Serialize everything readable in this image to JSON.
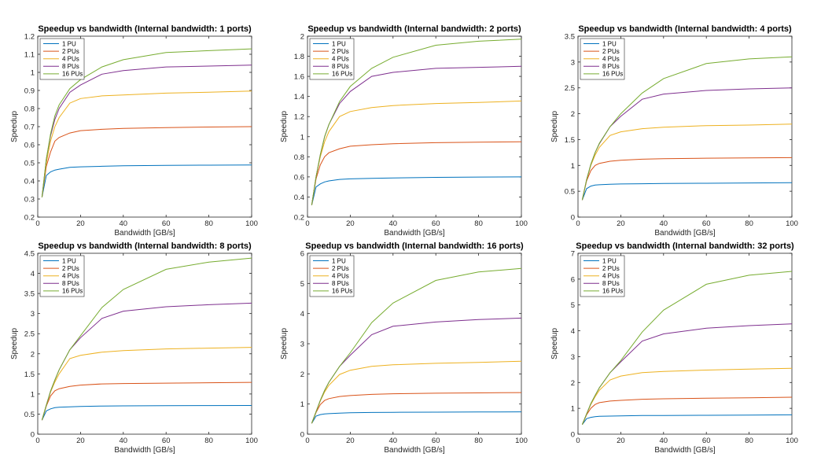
{
  "chart_data": [
    {
      "type": "line",
      "title": "Speedup vs bandwidth (Internal bandwidth: 1 ports)",
      "xlabel": "Bandwidth [GB/s]",
      "ylabel": "Speedup",
      "xlim": [
        0,
        100
      ],
      "ylim": [
        0.2,
        1.2
      ],
      "xticks": [
        0,
        20,
        40,
        60,
        80,
        100
      ],
      "yticks": [
        0.2,
        0.3,
        0.4,
        0.5,
        0.6,
        0.7,
        0.8,
        0.9,
        1,
        1.1,
        1.2
      ],
      "legend_position": "top-left",
      "x": [
        2,
        4,
        6,
        8,
        10,
        15,
        20,
        30,
        40,
        60,
        80,
        100
      ],
      "series": [
        {
          "name": "1 PU",
          "color": "#0072BD",
          "values": [
            0.31,
            0.43,
            0.45,
            0.46,
            0.465,
            0.475,
            0.478,
            0.481,
            0.484,
            0.486,
            0.487,
            0.488
          ]
        },
        {
          "name": "2 PUs",
          "color": "#D95319",
          "values": [
            0.31,
            0.48,
            0.56,
            0.62,
            0.64,
            0.665,
            0.678,
            0.685,
            0.69,
            0.695,
            0.698,
            0.7
          ]
        },
        {
          "name": "4 PUs",
          "color": "#EDB120",
          "values": [
            0.31,
            0.5,
            0.62,
            0.7,
            0.75,
            0.83,
            0.855,
            0.87,
            0.875,
            0.885,
            0.89,
            0.897
          ]
        },
        {
          "name": "8 PUs",
          "color": "#7E2F8E",
          "values": [
            0.31,
            0.52,
            0.65,
            0.74,
            0.8,
            0.89,
            0.93,
            0.99,
            1.01,
            1.03,
            1.035,
            1.04
          ]
        },
        {
          "name": "16 PUs",
          "color": "#77AC30",
          "values": [
            0.31,
            0.52,
            0.66,
            0.76,
            0.82,
            0.91,
            0.96,
            1.03,
            1.07,
            1.11,
            1.12,
            1.13
          ]
        }
      ]
    },
    {
      "type": "line",
      "title": "Speedup vs bandwidth (Internal bandwidth: 2 ports)",
      "xlabel": "Bandwidth [GB/s]",
      "ylabel": "Speedup",
      "xlim": [
        0,
        100
      ],
      "ylim": [
        0.2,
        2
      ],
      "xticks": [
        0,
        20,
        40,
        60,
        80,
        100
      ],
      "yticks": [
        0.2,
        0.4,
        0.6,
        0.8,
        1,
        1.2,
        1.4,
        1.6,
        1.8,
        2
      ],
      "legend_position": "top-left",
      "x": [
        2,
        4,
        6,
        8,
        10,
        15,
        20,
        30,
        40,
        60,
        80,
        100
      ],
      "series": [
        {
          "name": "1 PU",
          "color": "#0072BD",
          "values": [
            0.32,
            0.5,
            0.53,
            0.55,
            0.56,
            0.575,
            0.58,
            0.585,
            0.59,
            0.595,
            0.598,
            0.6
          ]
        },
        {
          "name": "2 PUs",
          "color": "#D95319",
          "values": [
            0.32,
            0.58,
            0.72,
            0.8,
            0.84,
            0.88,
            0.905,
            0.92,
            0.93,
            0.94,
            0.945,
            0.95
          ]
        },
        {
          "name": "4 PUs",
          "color": "#EDB120",
          "values": [
            0.32,
            0.6,
            0.8,
            0.95,
            1.05,
            1.2,
            1.25,
            1.29,
            1.31,
            1.33,
            1.34,
            1.355
          ]
        },
        {
          "name": "8 PUs",
          "color": "#7E2F8E",
          "values": [
            0.32,
            0.6,
            0.82,
            1.0,
            1.12,
            1.33,
            1.45,
            1.6,
            1.64,
            1.68,
            1.69,
            1.7
          ]
        },
        {
          "name": "16 PUs",
          "color": "#77AC30",
          "values": [
            0.32,
            0.6,
            0.82,
            1.0,
            1.12,
            1.35,
            1.5,
            1.68,
            1.79,
            1.91,
            1.95,
            1.97
          ]
        }
      ]
    },
    {
      "type": "line",
      "title": "Speedup vs bandwidth (Internal bandwidth: 4 ports)",
      "xlabel": "Bandwidth [GB/s]",
      "ylabel": "Speedup",
      "xlim": [
        0,
        100
      ],
      "ylim": [
        0,
        3.5
      ],
      "xticks": [
        0,
        20,
        40,
        60,
        80,
        100
      ],
      "yticks": [
        0,
        0.5,
        1,
        1.5,
        2,
        2.5,
        3,
        3.5
      ],
      "legend_position": "top-left",
      "x": [
        2,
        4,
        6,
        8,
        10,
        15,
        20,
        30,
        40,
        60,
        80,
        100
      ],
      "series": [
        {
          "name": "1 PU",
          "color": "#0072BD",
          "values": [
            0.33,
            0.55,
            0.6,
            0.62,
            0.625,
            0.635,
            0.64,
            0.645,
            0.65,
            0.655,
            0.66,
            0.665
          ]
        },
        {
          "name": "2 PUs",
          "color": "#D95319",
          "values": [
            0.33,
            0.7,
            0.9,
            1.0,
            1.04,
            1.08,
            1.1,
            1.12,
            1.13,
            1.14,
            1.145,
            1.15
          ]
        },
        {
          "name": "4 PUs",
          "color": "#EDB120",
          "values": [
            0.33,
            0.72,
            1.0,
            1.2,
            1.35,
            1.58,
            1.65,
            1.71,
            1.74,
            1.77,
            1.78,
            1.8
          ]
        },
        {
          "name": "8 PUs",
          "color": "#7E2F8E",
          "values": [
            0.33,
            0.72,
            1.02,
            1.25,
            1.42,
            1.75,
            1.95,
            2.28,
            2.38,
            2.45,
            2.48,
            2.5
          ]
        },
        {
          "name": "16 PUs",
          "color": "#77AC30",
          "values": [
            0.33,
            0.72,
            1.02,
            1.25,
            1.43,
            1.75,
            2.0,
            2.4,
            2.68,
            2.97,
            3.06,
            3.1
          ]
        }
      ]
    },
    {
      "type": "line",
      "title": "Speedup vs bandwidth (Internal bandwidth: 8 ports)",
      "xlabel": "Bandwidth [GB/s]",
      "ylabel": "Speedup",
      "xlim": [
        0,
        100
      ],
      "ylim": [
        0,
        4.5
      ],
      "xticks": [
        0,
        20,
        40,
        60,
        80,
        100
      ],
      "yticks": [
        0,
        0.5,
        1,
        1.5,
        2,
        2.5,
        3,
        3.5,
        4,
        4.5
      ],
      "legend_position": "top-left",
      "x": [
        2,
        4,
        6,
        8,
        10,
        15,
        20,
        30,
        40,
        60,
        80,
        100
      ],
      "series": [
        {
          "name": "1 PU",
          "color": "#0072BD",
          "values": [
            0.35,
            0.58,
            0.63,
            0.66,
            0.67,
            0.68,
            0.69,
            0.7,
            0.705,
            0.71,
            0.712,
            0.715
          ]
        },
        {
          "name": "2 PUs",
          "color": "#D95319",
          "values": [
            0.35,
            0.7,
            0.95,
            1.08,
            1.13,
            1.19,
            1.22,
            1.25,
            1.26,
            1.27,
            1.28,
            1.29
          ]
        },
        {
          "name": "4 PUs",
          "color": "#EDB120",
          "values": [
            0.35,
            0.72,
            1.05,
            1.3,
            1.5,
            1.88,
            1.96,
            2.04,
            2.08,
            2.12,
            2.14,
            2.16
          ]
        },
        {
          "name": "8 PUs",
          "color": "#7E2F8E",
          "values": [
            0.35,
            0.72,
            1.07,
            1.35,
            1.6,
            2.1,
            2.4,
            2.88,
            3.06,
            3.17,
            3.22,
            3.26
          ]
        },
        {
          "name": "16 PUs",
          "color": "#77AC30",
          "values": [
            0.35,
            0.72,
            1.07,
            1.35,
            1.6,
            2.1,
            2.45,
            3.15,
            3.6,
            4.1,
            4.28,
            4.38
          ]
        }
      ]
    },
    {
      "type": "line",
      "title": "Speedup vs bandwidth (Internal bandwidth: 16 ports)",
      "xlabel": "Bandwidth [GB/s]",
      "ylabel": "Speedup",
      "xlim": [
        0,
        100
      ],
      "ylim": [
        0,
        6
      ],
      "xticks": [
        0,
        20,
        40,
        60,
        80,
        100
      ],
      "yticks": [
        0,
        1,
        2,
        3,
        4,
        5,
        6
      ],
      "legend_position": "top-left",
      "x": [
        2,
        4,
        6,
        8,
        10,
        15,
        20,
        30,
        40,
        60,
        80,
        100
      ],
      "series": [
        {
          "name": "1 PU",
          "color": "#0072BD",
          "values": [
            0.36,
            0.6,
            0.65,
            0.67,
            0.68,
            0.7,
            0.71,
            0.72,
            0.725,
            0.73,
            0.735,
            0.74
          ]
        },
        {
          "name": "2 PUs",
          "color": "#D95319",
          "values": [
            0.36,
            0.72,
            0.98,
            1.12,
            1.18,
            1.25,
            1.28,
            1.32,
            1.34,
            1.36,
            1.37,
            1.38
          ]
        },
        {
          "name": "4 PUs",
          "color": "#EDB120",
          "values": [
            0.36,
            0.74,
            1.1,
            1.4,
            1.62,
            1.98,
            2.12,
            2.25,
            2.3,
            2.35,
            2.38,
            2.42
          ]
        },
        {
          "name": "8 PUs",
          "color": "#7E2F8E",
          "values": [
            0.36,
            0.74,
            1.12,
            1.45,
            1.72,
            2.25,
            2.62,
            3.3,
            3.58,
            3.72,
            3.8,
            3.85
          ]
        },
        {
          "name": "16 PUs",
          "color": "#77AC30",
          "values": [
            0.36,
            0.74,
            1.12,
            1.45,
            1.72,
            2.25,
            2.7,
            3.7,
            4.35,
            5.1,
            5.38,
            5.5
          ]
        }
      ]
    },
    {
      "type": "line",
      "title": "Speedup vs bandwidth (Internal bandwidth: 32 ports)",
      "xlabel": "Bandwidth [GB/s]",
      "ylabel": "Speedup",
      "xlim": [
        0,
        100
      ],
      "ylim": [
        0,
        7
      ],
      "xticks": [
        0,
        20,
        40,
        60,
        80,
        100
      ],
      "yticks": [
        0,
        1,
        2,
        3,
        4,
        5,
        6,
        7
      ],
      "legend_position": "top-left",
      "x": [
        2,
        4,
        6,
        8,
        10,
        15,
        20,
        30,
        40,
        60,
        80,
        100
      ],
      "series": [
        {
          "name": "1 PU",
          "color": "#0072BD",
          "values": [
            0.37,
            0.6,
            0.65,
            0.68,
            0.69,
            0.7,
            0.71,
            0.72,
            0.725,
            0.73,
            0.74,
            0.75
          ]
        },
        {
          "name": "2 PUs",
          "color": "#D95319",
          "values": [
            0.37,
            0.75,
            1.0,
            1.15,
            1.22,
            1.28,
            1.31,
            1.35,
            1.37,
            1.39,
            1.41,
            1.43
          ]
        },
        {
          "name": "4 PUs",
          "color": "#EDB120",
          "values": [
            0.37,
            0.78,
            1.15,
            1.45,
            1.7,
            2.1,
            2.25,
            2.38,
            2.43,
            2.48,
            2.52,
            2.55
          ]
        },
        {
          "name": "8 PUs",
          "color": "#7E2F8E",
          "values": [
            0.37,
            0.78,
            1.18,
            1.5,
            1.8,
            2.38,
            2.8,
            3.6,
            3.88,
            4.1,
            4.2,
            4.27
          ]
        },
        {
          "name": "16 PUs",
          "color": "#77AC30",
          "values": [
            0.37,
            0.78,
            1.18,
            1.5,
            1.8,
            2.38,
            2.85,
            3.95,
            4.8,
            5.8,
            6.15,
            6.3
          ]
        }
      ]
    }
  ]
}
